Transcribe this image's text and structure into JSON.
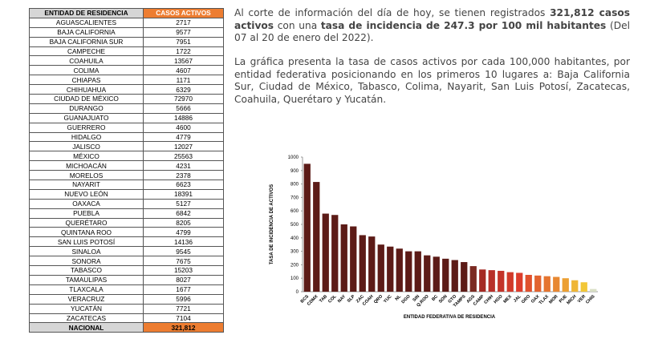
{
  "table": {
    "header": [
      "ENTIDAD DE RESIDENCIA",
      "CASOS ACTIVOS"
    ],
    "rows": [
      [
        "AGUASCALIENTES",
        "2717"
      ],
      [
        "BAJA CALIFORNIA",
        "9577"
      ],
      [
        "BAJA CALIFORNIA SUR",
        "7951"
      ],
      [
        "CAMPECHE",
        "1722"
      ],
      [
        "COAHUILA",
        "13567"
      ],
      [
        "COLIMA",
        "4607"
      ],
      [
        "CHIAPAS",
        "1171"
      ],
      [
        "CHIHUAHUA",
        "6329"
      ],
      [
        "CIUDAD DE MÉXICO",
        "72970"
      ],
      [
        "DURANGO",
        "5666"
      ],
      [
        "GUANAJUATO",
        "14886"
      ],
      [
        "GUERRERO",
        "4600"
      ],
      [
        "HIDALGO",
        "4779"
      ],
      [
        "JALISCO",
        "12027"
      ],
      [
        "MÉXICO",
        "25563"
      ],
      [
        "MICHOACÁN",
        "4231"
      ],
      [
        "MORELOS",
        "2378"
      ],
      [
        "NAYARIT",
        "6623"
      ],
      [
        "NUEVO LEÓN",
        "18391"
      ],
      [
        "OAXACA",
        "5127"
      ],
      [
        "PUEBLA",
        "6842"
      ],
      [
        "QUERÉTARO",
        "8205"
      ],
      [
        "QUINTANA ROO",
        "4799"
      ],
      [
        "SAN LUIS POTOSÍ",
        "14136"
      ],
      [
        "SINALOA",
        "9545"
      ],
      [
        "SONORA",
        "7675"
      ],
      [
        "TABASCO",
        "15203"
      ],
      [
        "TAMAULIPAS",
        "8027"
      ],
      [
        "TLAXCALA",
        "1677"
      ],
      [
        "VERACRUZ",
        "5996"
      ],
      [
        "YUCATÁN",
        "7721"
      ],
      [
        "ZACATECAS",
        "7104"
      ]
    ],
    "total": [
      "NACIONAL",
      "321,812"
    ]
  },
  "paragraphs": [
    [
      {
        "text": "Al corte de información del día de hoy, se tienen registrados ",
        "bold": false
      },
      {
        "text": "321,812 casos activos",
        "bold": true
      },
      {
        "text": " con una ",
        "bold": false
      },
      {
        "text": "tasa de incidencia de 247.3 por 100 mil habitantes",
        "bold": true
      },
      {
        "text": " (Del 07 al 20 de enero del 2022).",
        "bold": false
      }
    ],
    [
      {
        "text": "La gráfica presenta la tasa de casos activos por cada 100,000 habitantes, por entidad federativa posicionando en los primeros 10 lugares a: Baja California Sur, Ciudad de México, Tabasco, Colima, Nayarit, San Luis Potosí, Zacatecas, Coahuila, Querétaro y Yucatán.",
        "bold": false
      }
    ]
  ],
  "chart_data": {
    "type": "bar",
    "x_label": "ENTIDAD FEDERATIVA DE RESIDENCIA",
    "y_label": "TASA DE INCIDENCIA DE ACTIVOS",
    "categories": [
      "BCS",
      "CDMX",
      "TAB",
      "COL",
      "NAY",
      "SLP",
      "ZAC",
      "COAH",
      "QRO",
      "YUC",
      "NL",
      "DGO",
      "SIN",
      "Q.ROO",
      "BC",
      "SON",
      "GTO",
      "TAMPS",
      "AGS",
      "CAMP",
      "CHIH",
      "HGO",
      "MEX",
      "JAL",
      "GRO",
      "OAX",
      "TLAX",
      "MOR",
      "PUE",
      "MICH",
      "VER",
      "CHIS"
    ],
    "values": [
      950,
      815,
      580,
      570,
      500,
      485,
      420,
      410,
      350,
      335,
      320,
      300,
      300,
      270,
      260,
      245,
      235,
      220,
      190,
      165,
      160,
      155,
      145,
      140,
      125,
      120,
      115,
      110,
      100,
      85,
      70,
      20
    ],
    "colors": [
      "#5c1b17",
      "#5c1b17",
      "#5c1b17",
      "#5c1b17",
      "#5c1b17",
      "#5c1b17",
      "#5c1b17",
      "#5c1b17",
      "#5c1b17",
      "#5c1b17",
      "#5c1b17",
      "#5c1b17",
      "#5c1b17",
      "#5c1b17",
      "#5c1b17",
      "#5c1b17",
      "#5c1b17",
      "#5c1b17",
      "#7b2a22",
      "#a52a24",
      "#b8302a",
      "#c33329",
      "#d13a2a",
      "#dc3d2c",
      "#e0512d",
      "#e2632f",
      "#e57530",
      "#e88832",
      "#eca033",
      "#efb636",
      "#f2c738",
      "#d9dfc5"
    ],
    "ylim": [
      0,
      1000
    ],
    "yticks": [
      0,
      100,
      200,
      300,
      400,
      500,
      600,
      700,
      800,
      900,
      1000
    ]
  }
}
